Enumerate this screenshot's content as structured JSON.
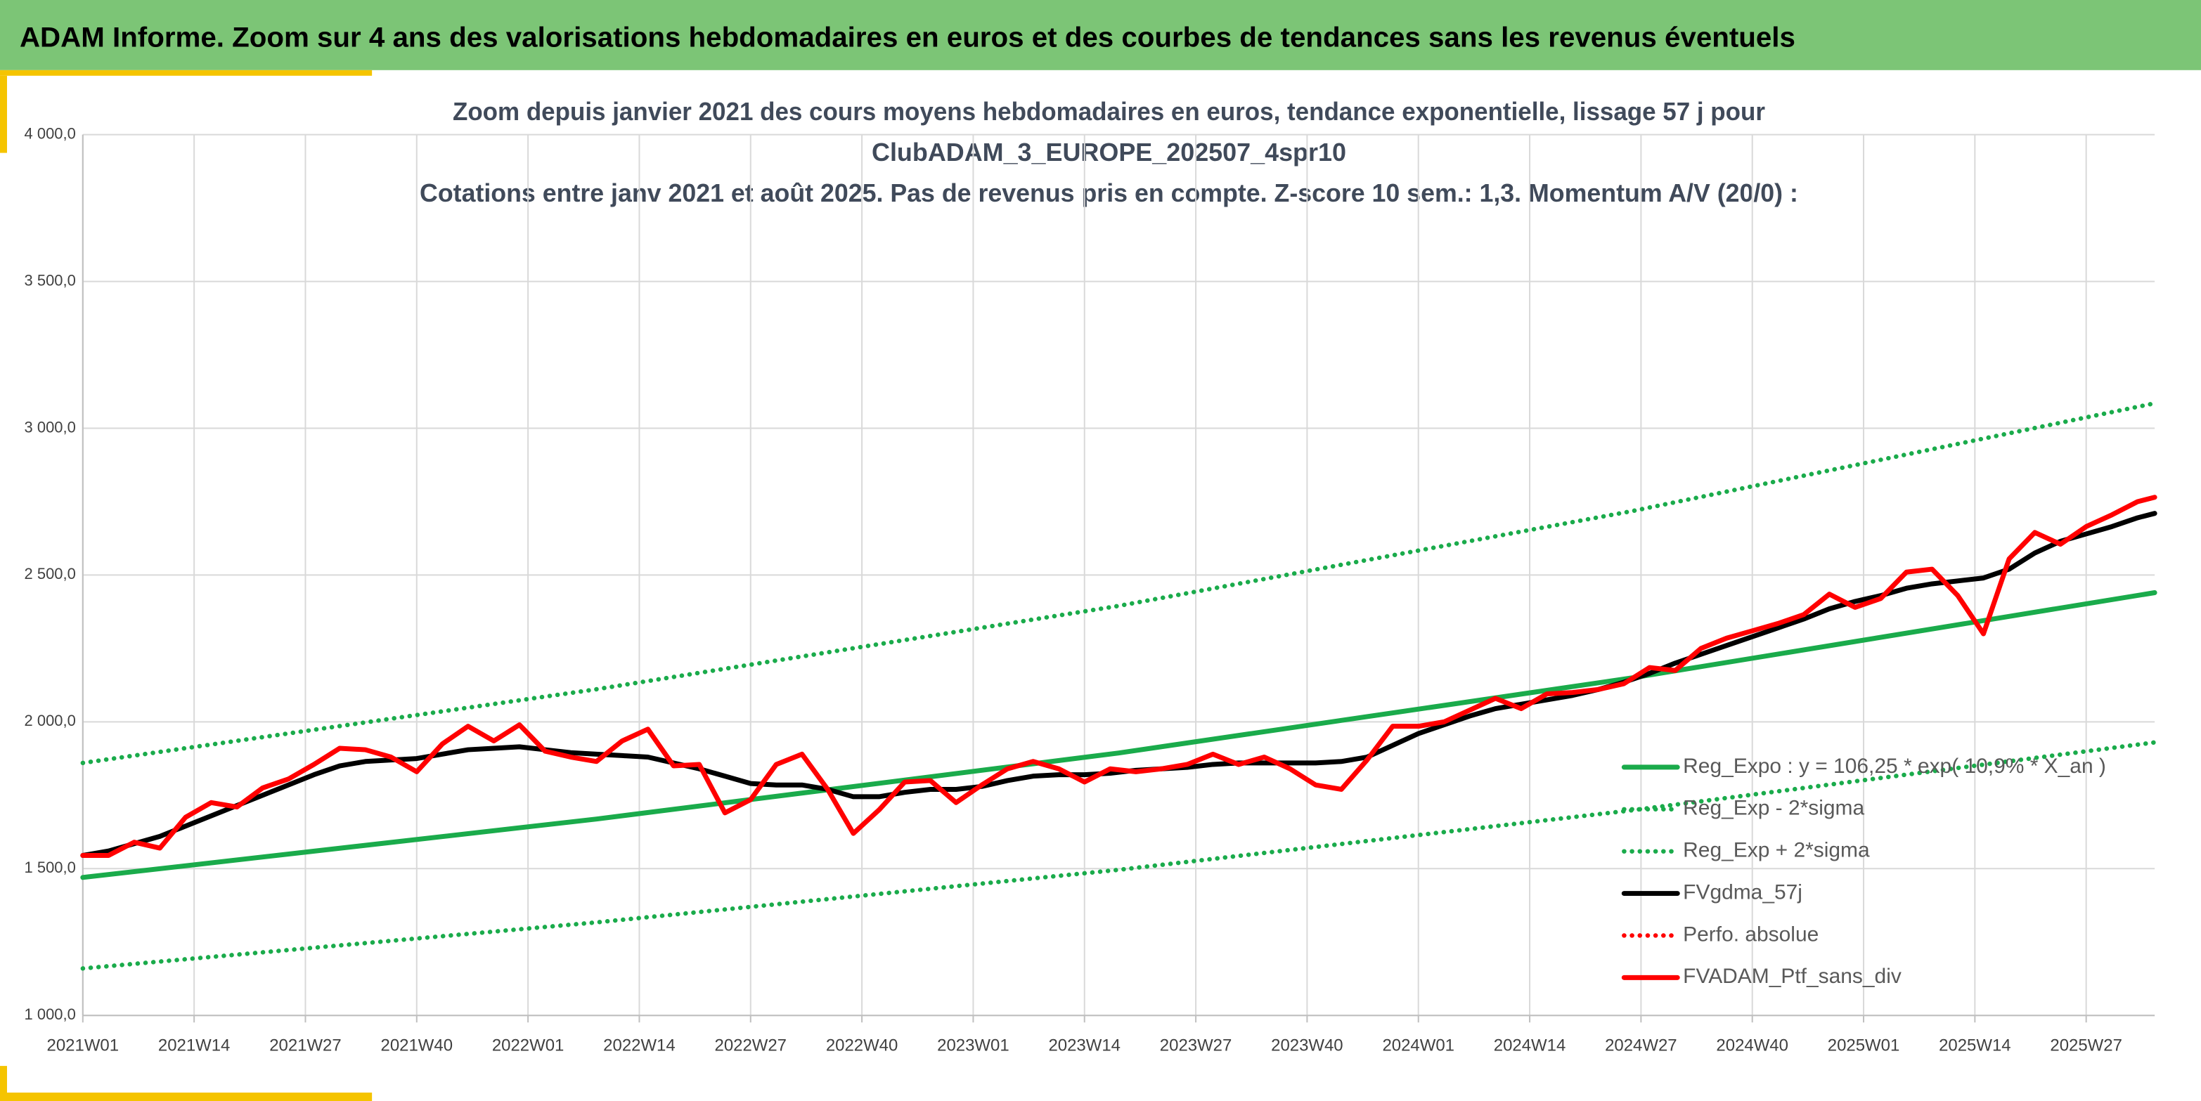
{
  "banner": "ADAM Informe. Zoom sur 4 ans des valorisations hebdomadaires en euros et des courbes de tendances sans les revenus éventuels",
  "chart_data": {
    "type": "line",
    "title": [
      "Zoom depuis janvier 2021 des cours moyens hebdomadaires en euros, tendance exponentielle, lissage 57 j pour",
      "ClubADAM_3_EUROPE_202507_4spr10",
      "Cotations entre janv 2021 et août 2025. Pas de revenus pris en compte. Z-score 10 sem.: 1,3. Momentum A/V (20/0) :"
    ],
    "x": [
      0,
      3,
      6,
      9,
      12,
      15,
      18,
      21,
      24,
      27,
      30,
      33,
      36,
      39,
      42,
      45,
      48,
      51,
      54,
      57,
      60,
      63,
      66,
      69,
      72,
      75,
      78,
      81,
      84,
      87,
      90,
      93,
      96,
      99,
      102,
      105,
      108,
      111,
      114,
      117,
      120,
      123,
      126,
      129,
      132,
      135,
      138,
      141,
      144,
      147,
      150,
      153,
      156,
      159,
      162,
      165,
      168,
      171,
      174,
      177,
      180,
      183,
      186,
      189,
      192,
      195,
      198,
      201,
      204,
      207,
      210,
      213,
      216,
      219,
      222,
      225,
      228,
      231,
      234,
      237,
      240,
      242
    ],
    "xlim": [
      0,
      242
    ],
    "xticks": [
      {
        "value": 0,
        "label": "2021W01"
      },
      {
        "value": 13,
        "label": "2021W14"
      },
      {
        "value": 26,
        "label": "2021W27"
      },
      {
        "value": 39,
        "label": "2021W40"
      },
      {
        "value": 52,
        "label": "2022W01"
      },
      {
        "value": 65,
        "label": "2022W14"
      },
      {
        "value": 78,
        "label": "2022W27"
      },
      {
        "value": 91,
        "label": "2022W40"
      },
      {
        "value": 104,
        "label": "2023W01"
      },
      {
        "value": 117,
        "label": "2023W14"
      },
      {
        "value": 130,
        "label": "2023W27"
      },
      {
        "value": 143,
        "label": "2023W40"
      },
      {
        "value": 156,
        "label": "2024W01"
      },
      {
        "value": 169,
        "label": "2024W14"
      },
      {
        "value": 182,
        "label": "2024W27"
      },
      {
        "value": 195,
        "label": "2024W40"
      },
      {
        "value": 208,
        "label": "2025W01"
      },
      {
        "value": 221,
        "label": "2025W14"
      },
      {
        "value": 234,
        "label": "2025W27"
      }
    ],
    "ylim": [
      1000,
      4000
    ],
    "yticks": [
      {
        "value": 1000,
        "label": "1 000,0"
      },
      {
        "value": 1500,
        "label": "1 500,0"
      },
      {
        "value": 2000,
        "label": "2 000,0"
      },
      {
        "value": 2500,
        "label": "2 500,0"
      },
      {
        "value": 3000,
        "label": "3 000,0"
      },
      {
        "value": 3500,
        "label": "3 500,0"
      },
      {
        "value": 4000,
        "label": "4 000,0"
      }
    ],
    "grid": true,
    "legend": "right",
    "series": [
      {
        "name": "Reg_Expo : y = 106,25 * exp( 10,9% * X_an )",
        "color": "#1aab4b",
        "dash": "solid",
        "x": [
          0,
          60,
          121,
          181,
          242
        ],
        "values": [
          1470,
          1669,
          1894,
          2150,
          2440
        ]
      },
      {
        "name": "Reg_Exp - 2*sigma",
        "color": "#1aab4b",
        "dash": "dotted",
        "x": [
          0,
          60,
          121,
          181,
          242
        ],
        "values": [
          1160,
          1317,
          1496,
          1699,
          1930
        ]
      },
      {
        "name": "Reg_Exp + 2*sigma",
        "color": "#1aab4b",
        "dash": "dotted",
        "x": [
          0,
          60,
          121,
          181,
          242
        ],
        "values": [
          1860,
          2111,
          2395,
          2718,
          3085
        ]
      },
      {
        "name": "FVgdma_57j",
        "color": "#000000",
        "dash": "solid",
        "values": [
          1545,
          1560,
          1585,
          1610,
          1645,
          1680,
          1715,
          1750,
          1785,
          1820,
          1850,
          1865,
          1870,
          1875,
          1890,
          1905,
          1910,
          1915,
          1905,
          1895,
          1890,
          1885,
          1880,
          1860,
          1840,
          1815,
          1790,
          1785,
          1785,
          1770,
          1745,
          1745,
          1760,
          1770,
          1770,
          1780,
          1800,
          1815,
          1820,
          1820,
          1825,
          1835,
          1840,
          1845,
          1855,
          1860,
          1860,
          1860,
          1860,
          1865,
          1880,
          1920,
          1960,
          1990,
          2020,
          2045,
          2060,
          2075,
          2090,
          2110,
          2135,
          2165,
          2200,
          2230,
          2260,
          2290,
          2320,
          2350,
          2385,
          2410,
          2430,
          2455,
          2470,
          2480,
          2490,
          2520,
          2575,
          2615,
          2640,
          2665,
          2695,
          2710
        ]
      },
      {
        "name": "Perfo. absolue",
        "color": "#ff0000",
        "dash": "dotted",
        "x": [],
        "values": []
      },
      {
        "name": "FVADAM_Ptf_sans_div",
        "color": "#ff0000",
        "dash": "solid",
        "values": [
          1545,
          1545,
          1590,
          1570,
          1675,
          1725,
          1710,
          1775,
          1805,
          1855,
          1910,
          1905,
          1880,
          1830,
          1925,
          1985,
          1935,
          1990,
          1900,
          1880,
          1865,
          1935,
          1975,
          1850,
          1855,
          1690,
          1735,
          1855,
          1890,
          1770,
          1620,
          1700,
          1795,
          1800,
          1725,
          1785,
          1840,
          1865,
          1840,
          1795,
          1840,
          1830,
          1840,
          1855,
          1890,
          1855,
          1880,
          1840,
          1785,
          1770,
          1870,
          1985,
          1985,
          2000,
          2040,
          2080,
          2045,
          2095,
          2100,
          2110,
          2130,
          2185,
          2175,
          2250,
          2285,
          2310,
          2335,
          2365,
          2435,
          2390,
          2420,
          2510,
          2520,
          2430,
          2300,
          2555,
          2645,
          2605,
          2665,
          2705,
          2750,
          2765
        ]
      }
    ]
  }
}
